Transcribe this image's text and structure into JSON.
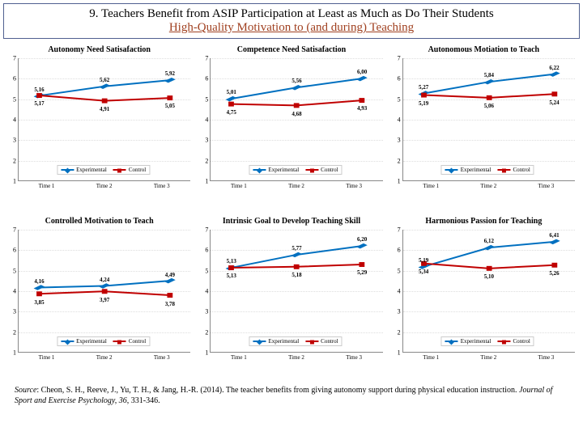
{
  "header": {
    "line1": "9. Teachers Benefit from ASIP Participation at Least as Much as Do Their Students",
    "line2": "High-Quality Motivation to (and during) Teaching"
  },
  "colors": {
    "experimental": "#0070c0",
    "experimental_marker": "#0070c0",
    "control": "#c00000",
    "control_marker": "#c00000",
    "grid": "#dddddd",
    "axis": "#888888"
  },
  "axis": {
    "ymin": 1,
    "ymax": 7,
    "yticks": [
      1,
      2,
      3,
      4,
      5,
      6,
      7
    ],
    "xlabels": [
      "Time 1",
      "Time 2",
      "Time 3"
    ]
  },
  "legend": {
    "experimental": "Experimental",
    "control": "Control"
  },
  "panels": [
    {
      "title": "Autonomy Need Satisafaction",
      "experimental": [
        5.16,
        5.62,
        5.92
      ],
      "control": [
        5.17,
        4.91,
        5.05
      ]
    },
    {
      "title": "Competence Need Satisafaction",
      "experimental": [
        5.01,
        5.56,
        6.0
      ],
      "control": [
        4.75,
        4.68,
        4.93
      ]
    },
    {
      "title": "Autonomous Motiation to Teach",
      "experimental": [
        5.27,
        5.84,
        6.22
      ],
      "control": [
        5.19,
        5.06,
        5.24
      ]
    },
    {
      "title": "Controlled Motivation to Teach",
      "experimental": [
        4.16,
        4.24,
        4.49
      ],
      "control": [
        3.85,
        3.97,
        3.78
      ]
    },
    {
      "title": "Intrinsic Goal to Develop Teaching Skill",
      "experimental": [
        5.13,
        5.77,
        6.2
      ],
      "control": [
        5.13,
        5.18,
        5.29
      ]
    },
    {
      "title": "Harmonious Passion for Teaching",
      "experimental": [
        5.19,
        6.12,
        6.41
      ],
      "control": [
        5.34,
        5.1,
        5.26
      ]
    }
  ],
  "source": {
    "lead": "Source",
    "text": ": Cheon, S. H., Reeve, J., Yu, T. H., & Jang, H.-R. (2014). The teacher benefits from giving autonomy support during physical education instruction. ",
    "journal": "Journal of Sport and Exercise Psychology, 36",
    "tail": ", 331-346."
  }
}
